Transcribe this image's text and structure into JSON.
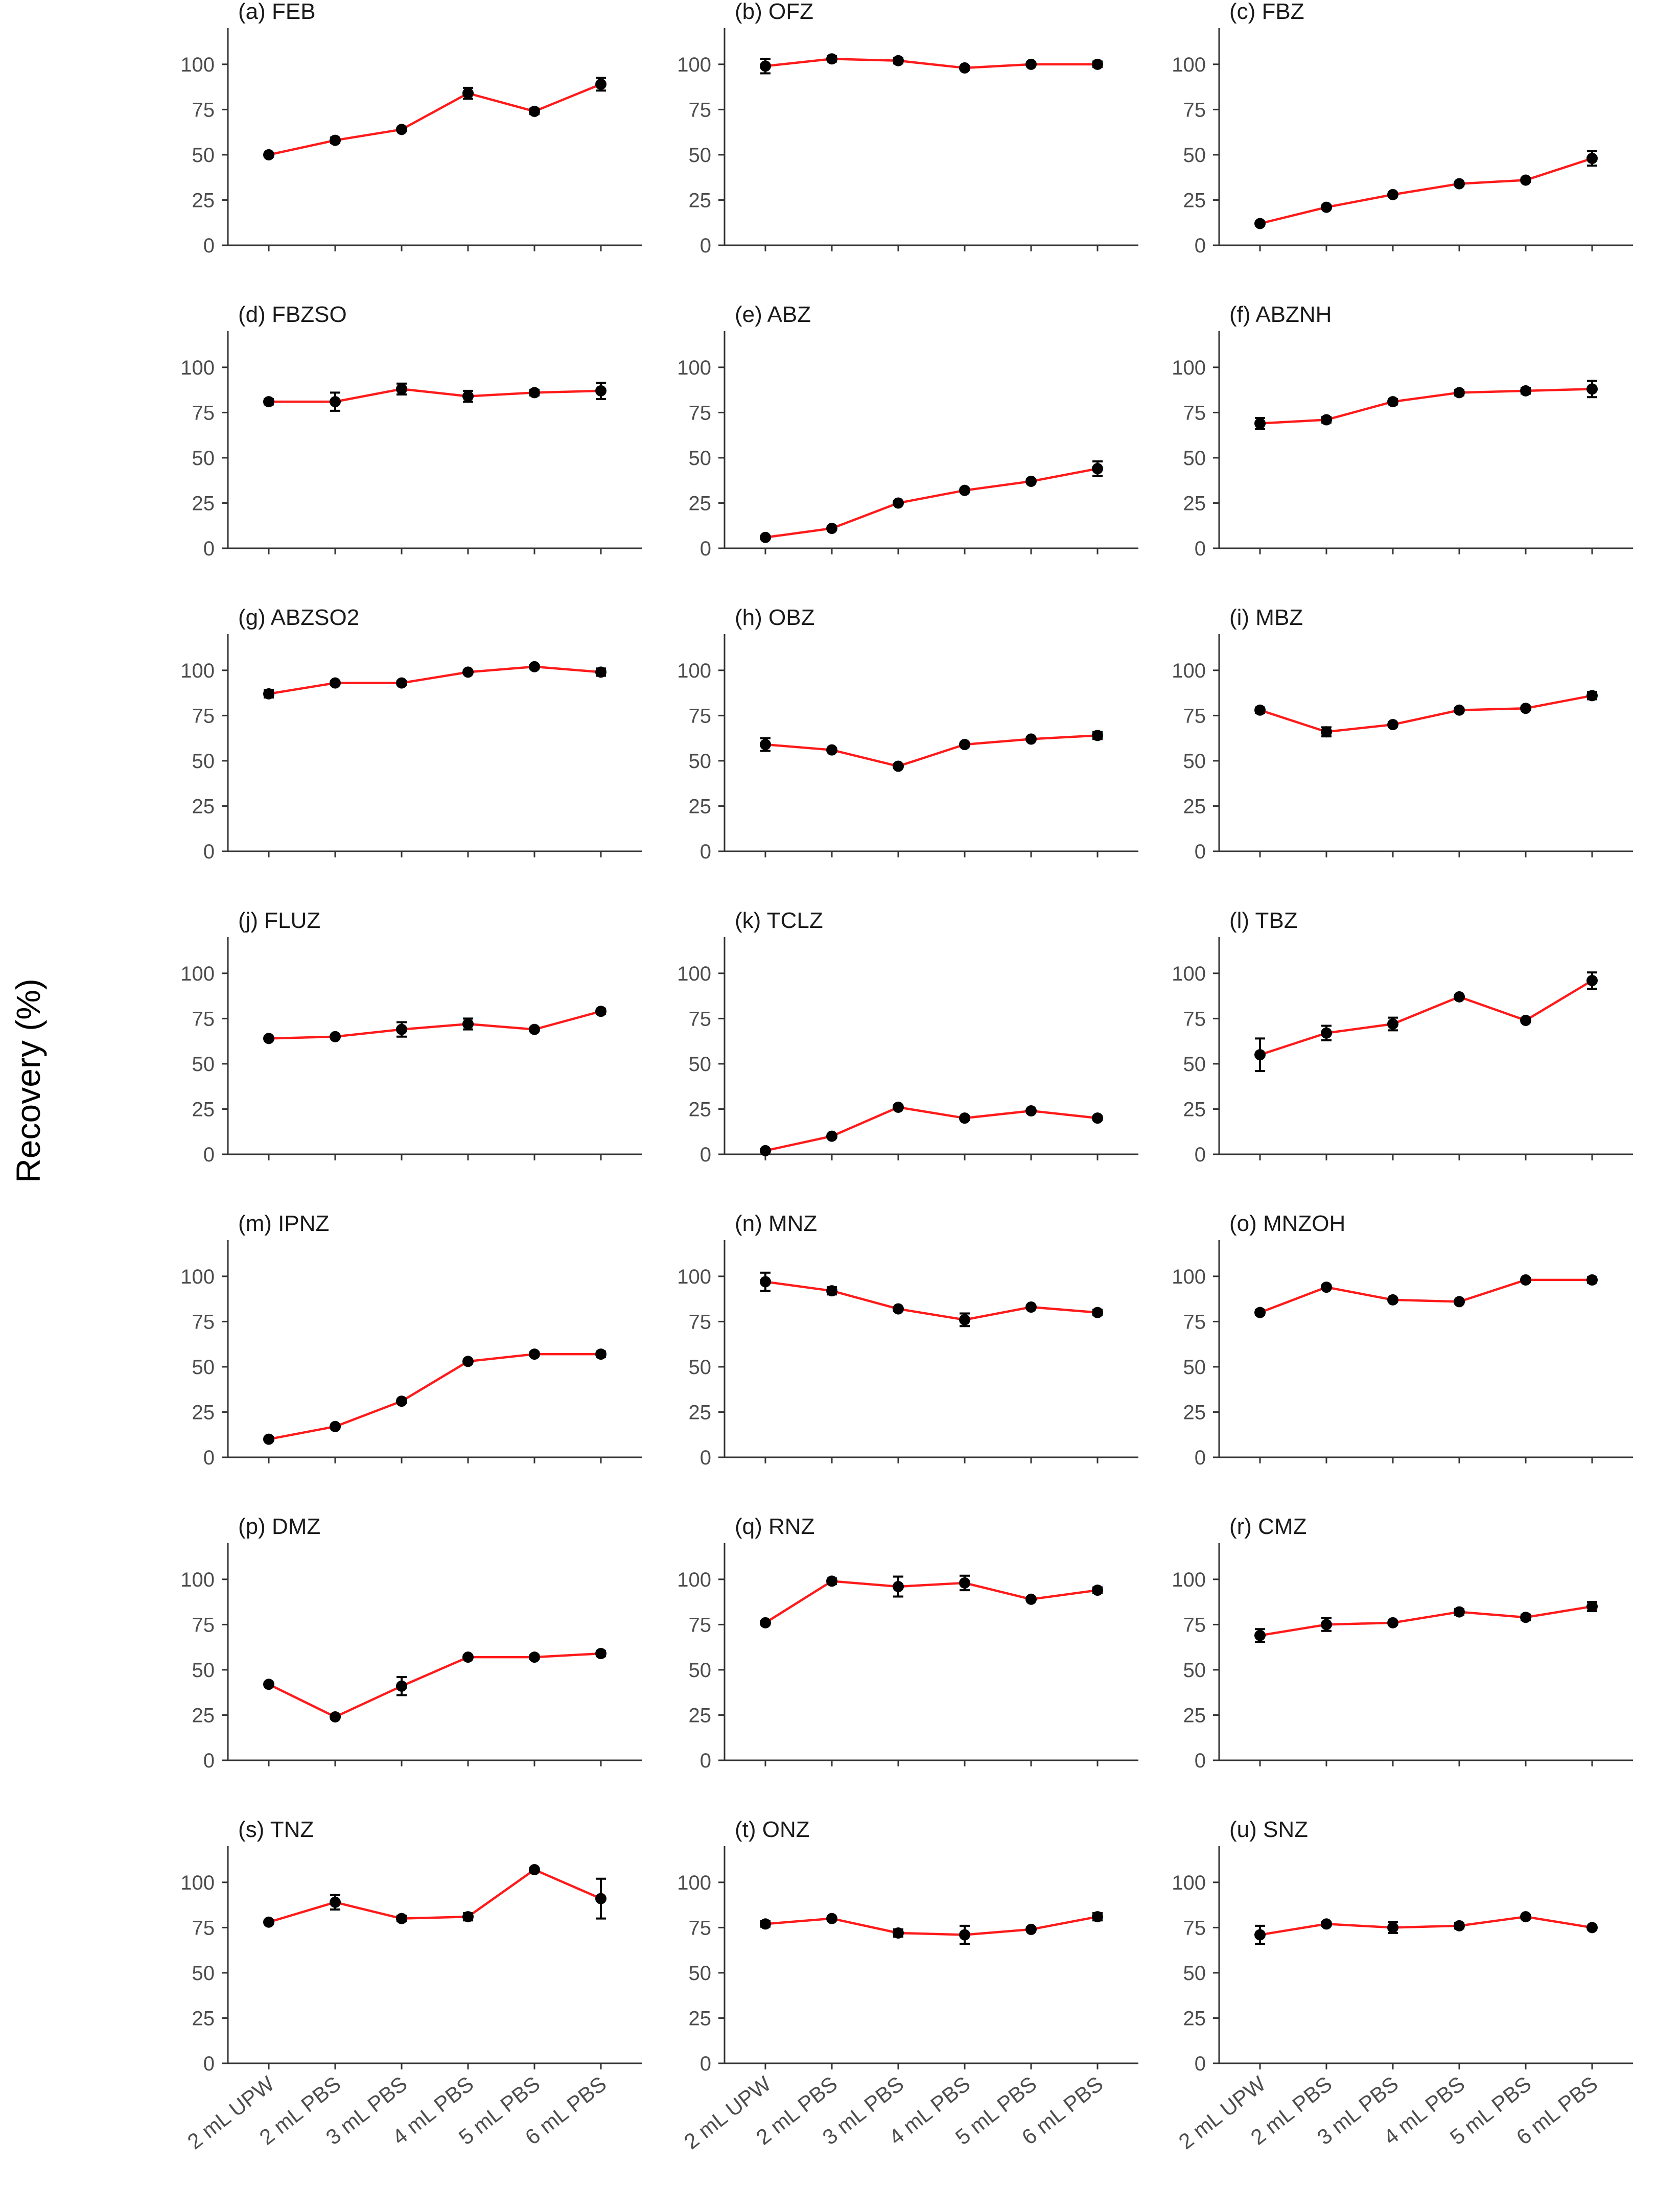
{
  "figure": {
    "ylabel": "Recovery (%)"
  },
  "colors": {
    "line": "#ff1a1a",
    "point": "#000000",
    "axis": "#333333"
  },
  "chart_data": [
    {
      "type": "line",
      "title": "(a) FEB",
      "categories": [
        "2 mL UPW",
        "2 mL PBS",
        "3 mL PBS",
        "4 mL PBS",
        "5 mL PBS",
        "6 mL PBS"
      ],
      "values": [
        50,
        58,
        64,
        84,
        74,
        89
      ],
      "errors": [
        1,
        1.5,
        1,
        3,
        1.5,
        3.5
      ],
      "ylim": [
        0,
        120
      ],
      "yticks": [
        0,
        25,
        50,
        75,
        100
      ],
      "xlabel": "",
      "ylabel": ""
    },
    {
      "type": "line",
      "title": "(b) OFZ",
      "categories": [
        "2 mL UPW",
        "2 mL PBS",
        "3 mL PBS",
        "4 mL PBS",
        "5 mL PBS",
        "6 mL PBS"
      ],
      "values": [
        99,
        103,
        102,
        98,
        100,
        100
      ],
      "errors": [
        4,
        1.5,
        1.5,
        1,
        1,
        1.5
      ],
      "ylim": [
        0,
        120
      ],
      "yticks": [
        0,
        25,
        50,
        75,
        100
      ],
      "xlabel": "",
      "ylabel": ""
    },
    {
      "type": "line",
      "title": "(c) FBZ",
      "categories": [
        "2 mL UPW",
        "2 mL PBS",
        "3 mL PBS",
        "4 mL PBS",
        "5 mL PBS",
        "6 mL PBS"
      ],
      "values": [
        12,
        21,
        28,
        34,
        36,
        48
      ],
      "errors": [
        1,
        1,
        1,
        1,
        1,
        4
      ],
      "ylim": [
        0,
        120
      ],
      "yticks": [
        0,
        25,
        50,
        75,
        100
      ],
      "xlabel": "",
      "ylabel": ""
    },
    {
      "type": "line",
      "title": "(d) FBZSO",
      "categories": [
        "2 mL UPW",
        "2 mL PBS",
        "3 mL PBS",
        "4 mL PBS",
        "5 mL PBS",
        "6 mL PBS"
      ],
      "values": [
        81,
        81,
        88,
        84,
        86,
        87
      ],
      "errors": [
        1.5,
        5,
        3,
        3,
        1.5,
        4.5
      ],
      "ylim": [
        0,
        120
      ],
      "yticks": [
        0,
        25,
        50,
        75,
        100
      ],
      "xlabel": "",
      "ylabel": ""
    },
    {
      "type": "line",
      "title": "(e) ABZ",
      "categories": [
        "2 mL UPW",
        "2 mL PBS",
        "3 mL PBS",
        "4 mL PBS",
        "5 mL PBS",
        "6 mL PBS"
      ],
      "values": [
        6,
        11,
        25,
        32,
        37,
        44
      ],
      "errors": [
        0.8,
        1,
        1,
        1,
        1,
        4
      ],
      "ylim": [
        0,
        120
      ],
      "yticks": [
        0,
        25,
        50,
        75,
        100
      ],
      "xlabel": "",
      "ylabel": ""
    },
    {
      "type": "line",
      "title": "(f) ABZNH",
      "categories": [
        "2 mL UPW",
        "2 mL PBS",
        "3 mL PBS",
        "4 mL PBS",
        "5 mL PBS",
        "6 mL PBS"
      ],
      "values": [
        69,
        71,
        81,
        86,
        87,
        88
      ],
      "errors": [
        3,
        1.5,
        1.5,
        1.5,
        1.5,
        4.5
      ],
      "ylim": [
        0,
        120
      ],
      "yticks": [
        0,
        25,
        50,
        75,
        100
      ],
      "xlabel": "",
      "ylabel": ""
    },
    {
      "type": "line",
      "title": "(g) ABZSO2",
      "categories": [
        "2 mL UPW",
        "2 mL PBS",
        "3 mL PBS",
        "4 mL PBS",
        "5 mL PBS",
        "6 mL PBS"
      ],
      "values": [
        87,
        93,
        93,
        99,
        102,
        99
      ],
      "errors": [
        2,
        1,
        1,
        1,
        1,
        2
      ],
      "ylim": [
        0,
        120
      ],
      "yticks": [
        0,
        25,
        50,
        75,
        100
      ],
      "xlabel": "",
      "ylabel": ""
    },
    {
      "type": "line",
      "title": "(h) OBZ",
      "categories": [
        "2 mL UPW",
        "2 mL PBS",
        "3 mL PBS",
        "4 mL PBS",
        "5 mL PBS",
        "6 mL PBS"
      ],
      "values": [
        59,
        56,
        47,
        59,
        62,
        64
      ],
      "errors": [
        3.5,
        1,
        1,
        1,
        1,
        2
      ],
      "ylim": [
        0,
        120
      ],
      "yticks": [
        0,
        25,
        50,
        75,
        100
      ],
      "xlabel": "",
      "ylabel": ""
    },
    {
      "type": "line",
      "title": "(i) MBZ",
      "categories": [
        "2 mL UPW",
        "2 mL PBS",
        "3 mL PBS",
        "4 mL PBS",
        "5 mL PBS",
        "6 mL PBS"
      ],
      "values": [
        78,
        66,
        70,
        78,
        79,
        86
      ],
      "errors": [
        1.5,
        2.5,
        1,
        1,
        1,
        2
      ],
      "ylim": [
        0,
        120
      ],
      "yticks": [
        0,
        25,
        50,
        75,
        100
      ],
      "xlabel": "",
      "ylabel": ""
    },
    {
      "type": "line",
      "title": "(j) FLUZ",
      "categories": [
        "2 mL UPW",
        "2 mL PBS",
        "3 mL PBS",
        "4 mL PBS",
        "5 mL PBS",
        "6 mL PBS"
      ],
      "values": [
        64,
        65,
        69,
        72,
        69,
        79
      ],
      "errors": [
        1,
        1,
        4,
        3,
        1,
        1.5
      ],
      "ylim": [
        0,
        120
      ],
      "yticks": [
        0,
        25,
        50,
        75,
        100
      ],
      "xlabel": "",
      "ylabel": ""
    },
    {
      "type": "line",
      "title": "(k) TCLZ",
      "categories": [
        "2 mL UPW",
        "2 mL PBS",
        "3 mL PBS",
        "4 mL PBS",
        "5 mL PBS",
        "6 mL PBS"
      ],
      "values": [
        2,
        10,
        26,
        20,
        24,
        20
      ],
      "errors": [
        0.5,
        1,
        1,
        1,
        1,
        1
      ],
      "ylim": [
        0,
        120
      ],
      "yticks": [
        0,
        25,
        50,
        75,
        100
      ],
      "xlabel": "",
      "ylabel": ""
    },
    {
      "type": "line",
      "title": "(l) TBZ",
      "categories": [
        "2 mL UPW",
        "2 mL PBS",
        "3 mL PBS",
        "4 mL PBS",
        "5 mL PBS",
        "6 mL PBS"
      ],
      "values": [
        55,
        67,
        72,
        87,
        74,
        96
      ],
      "errors": [
        9,
        4,
        3.5,
        1,
        1,
        4.5
      ],
      "ylim": [
        0,
        120
      ],
      "yticks": [
        0,
        25,
        50,
        75,
        100
      ],
      "xlabel": "",
      "ylabel": ""
    },
    {
      "type": "line",
      "title": "(m) IPNZ",
      "categories": [
        "2 mL UPW",
        "2 mL PBS",
        "3 mL PBS",
        "4 mL PBS",
        "5 mL PBS",
        "6 mL PBS"
      ],
      "values": [
        10,
        17,
        31,
        53,
        57,
        57
      ],
      "errors": [
        1,
        1,
        1,
        1,
        1,
        1.5
      ],
      "ylim": [
        0,
        120
      ],
      "yticks": [
        0,
        25,
        50,
        75,
        100
      ],
      "xlabel": "",
      "ylabel": ""
    },
    {
      "type": "line",
      "title": "(n) MNZ",
      "categories": [
        "2 mL UPW",
        "2 mL PBS",
        "3 mL PBS",
        "4 mL PBS",
        "5 mL PBS",
        "6 mL PBS"
      ],
      "values": [
        97,
        92,
        82,
        76,
        83,
        80
      ],
      "errors": [
        5,
        2,
        1,
        3.5,
        1,
        1.5
      ],
      "ylim": [
        0,
        120
      ],
      "yticks": [
        0,
        25,
        50,
        75,
        100
      ],
      "xlabel": "",
      "ylabel": ""
    },
    {
      "type": "line",
      "title": "(o) MNZOH",
      "categories": [
        "2 mL UPW",
        "2 mL PBS",
        "3 mL PBS",
        "4 mL PBS",
        "5 mL PBS",
        "6 mL PBS"
      ],
      "values": [
        80,
        94,
        87,
        86,
        98,
        98
      ],
      "errors": [
        1.5,
        1,
        1,
        1,
        1,
        1.5
      ],
      "ylim": [
        0,
        120
      ],
      "yticks": [
        0,
        25,
        50,
        75,
        100
      ],
      "xlabel": "",
      "ylabel": ""
    },
    {
      "type": "line",
      "title": "(p) DMZ",
      "categories": [
        "2 mL UPW",
        "2 mL PBS",
        "3 mL PBS",
        "4 mL PBS",
        "5 mL PBS",
        "6 mL PBS"
      ],
      "values": [
        42,
        24,
        41,
        57,
        57,
        59
      ],
      "errors": [
        1,
        1,
        5,
        1,
        1,
        1.5
      ],
      "ylim": [
        0,
        120
      ],
      "yticks": [
        0,
        25,
        50,
        75,
        100
      ],
      "xlabel": "",
      "ylabel": ""
    },
    {
      "type": "line",
      "title": "(q) RNZ",
      "categories": [
        "2 mL UPW",
        "2 mL PBS",
        "3 mL PBS",
        "4 mL PBS",
        "5 mL PBS",
        "6 mL PBS"
      ],
      "values": [
        76,
        99,
        96,
        98,
        89,
        94
      ],
      "errors": [
        1,
        1.5,
        5.5,
        4,
        1,
        1.5
      ],
      "ylim": [
        0,
        120
      ],
      "yticks": [
        0,
        25,
        50,
        75,
        100
      ],
      "xlabel": "",
      "ylabel": ""
    },
    {
      "type": "line",
      "title": "(r) CMZ",
      "categories": [
        "2 mL UPW",
        "2 mL PBS",
        "3 mL PBS",
        "4 mL PBS",
        "5 mL PBS",
        "6 mL PBS"
      ],
      "values": [
        69,
        75,
        76,
        82,
        79,
        85
      ],
      "errors": [
        3.5,
        3.5,
        1,
        1.5,
        1.5,
        2.5
      ],
      "ylim": [
        0,
        120
      ],
      "yticks": [
        0,
        25,
        50,
        75,
        100
      ],
      "xlabel": "",
      "ylabel": ""
    },
    {
      "type": "line",
      "title": "(s) TNZ",
      "categories": [
        "2 mL UPW",
        "2 mL PBS",
        "3 mL PBS",
        "4 mL PBS",
        "5 mL PBS",
        "6 mL PBS"
      ],
      "values": [
        78,
        89,
        80,
        81,
        107,
        91
      ],
      "errors": [
        1,
        4,
        1.5,
        2,
        1,
        11
      ],
      "ylim": [
        0,
        120
      ],
      "yticks": [
        0,
        25,
        50,
        75,
        100
      ],
      "xlabel": "",
      "ylabel": ""
    },
    {
      "type": "line",
      "title": "(t) ONZ",
      "categories": [
        "2 mL UPW",
        "2 mL PBS",
        "3 mL PBS",
        "4 mL PBS",
        "5 mL PBS",
        "6 mL PBS"
      ],
      "values": [
        77,
        80,
        72,
        71,
        74,
        81
      ],
      "errors": [
        1.5,
        1,
        2,
        5,
        1,
        2
      ],
      "ylim": [
        0,
        120
      ],
      "yticks": [
        0,
        25,
        50,
        75,
        100
      ],
      "xlabel": "",
      "ylabel": ""
    },
    {
      "type": "line",
      "title": "(u) SNZ",
      "categories": [
        "2 mL UPW",
        "2 mL PBS",
        "3 mL PBS",
        "4 mL PBS",
        "5 mL PBS",
        "6 mL PBS"
      ],
      "values": [
        71,
        77,
        75,
        76,
        81,
        75
      ],
      "errors": [
        5,
        1,
        3,
        1.5,
        1,
        1
      ],
      "ylim": [
        0,
        120
      ],
      "yticks": [
        0,
        25,
        50,
        75,
        100
      ],
      "xlabel": "",
      "ylabel": ""
    }
  ]
}
